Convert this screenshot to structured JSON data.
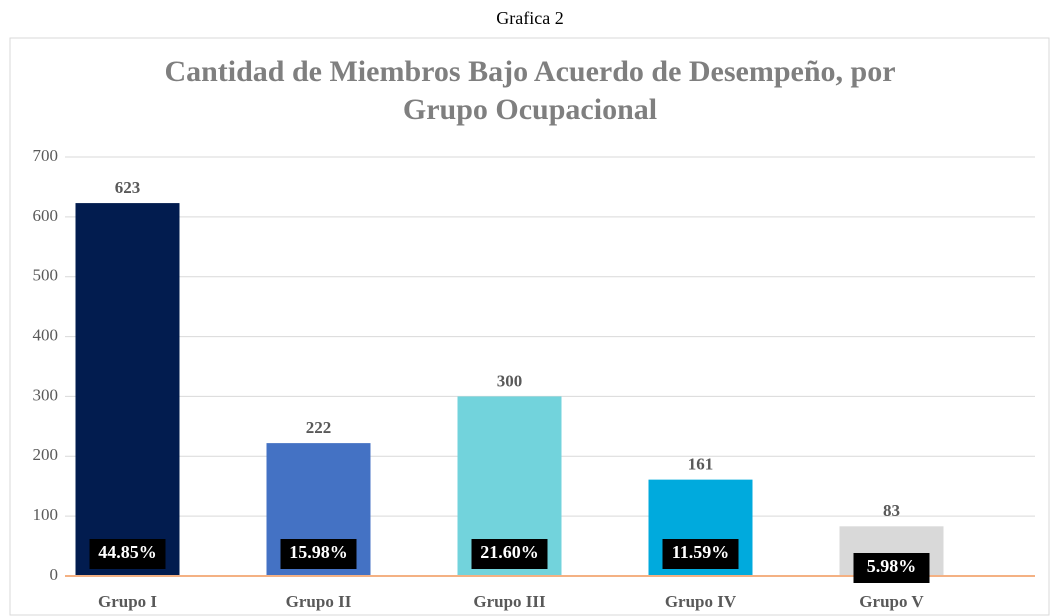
{
  "header": "Grafica 2",
  "chart_data": {
    "type": "bar",
    "title": [
      "Cantidad de Miembros Bajo Acuerdo de Desempeño, por",
      "Grupo Ocupacional"
    ],
    "categories": [
      "Grupo I",
      "Grupo II",
      "Grupo III",
      "Grupo IV",
      "Grupo V"
    ],
    "values": [
      623,
      222,
      300,
      161,
      83
    ],
    "percent_labels": [
      "44.85%",
      "15.98%",
      "21.60%",
      "11.59%",
      "5.98%"
    ],
    "colors": [
      "#021c4f",
      "#4472c4",
      "#72d3dc",
      "#00aadd",
      "#d9d9d9"
    ],
    "ylim": [
      0,
      700
    ],
    "yticks": [
      0,
      100,
      200,
      300,
      400,
      500,
      600,
      700
    ],
    "grid": true
  }
}
